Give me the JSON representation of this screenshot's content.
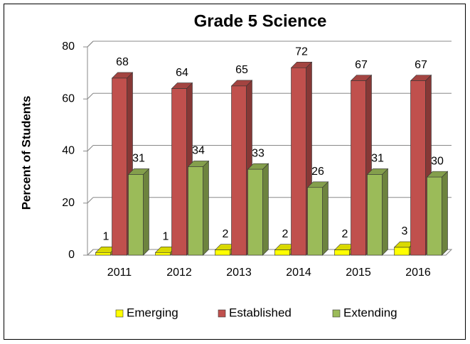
{
  "chart_data": {
    "type": "bar3d",
    "title": "Grade 5 Science",
    "y_label": "Percent of Students",
    "categories": [
      "2011",
      "2012",
      "2013",
      "2014",
      "2015",
      "2016"
    ],
    "series": [
      {
        "name": "Emerging",
        "color": "#ffff00",
        "values": [
          1,
          1,
          2,
          2,
          2,
          3
        ]
      },
      {
        "name": "Established",
        "color": "#c0504d",
        "values": [
          68,
          64,
          65,
          72,
          67,
          67
        ]
      },
      {
        "name": "Extending",
        "color": "#9bbb59",
        "values": [
          31,
          34,
          33,
          26,
          31,
          30
        ]
      }
    ],
    "ylim": [
      0,
      80
    ],
    "yticks": [
      0,
      20,
      40,
      60,
      80
    ],
    "grid": true,
    "legend": "bottom"
  }
}
